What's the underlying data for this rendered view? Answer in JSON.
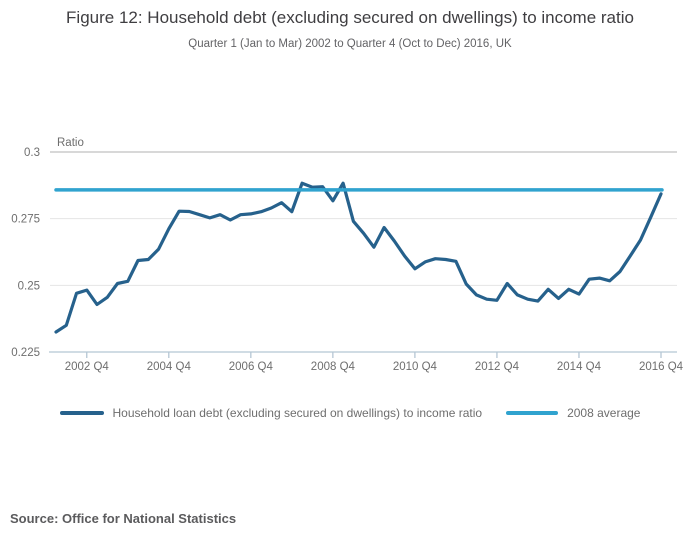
{
  "header": {
    "title": "Figure 12: Household debt (excluding secured on dwellings) to income ratio",
    "subtitle": "Quarter 1 (Jan to Mar) 2002 to Quarter 4 (Oct to Dec) 2016, UK"
  },
  "source": "Source: Office for National Statistics",
  "chart_data": {
    "type": "line",
    "title": "Figure 12: Household debt (excluding secured on dwellings) to income ratio",
    "subtitle": "Quarter 1 (Jan to Mar) 2002 to Quarter 4 (Oct to Dec) 2016, UK",
    "grid": "horizontal-only",
    "legend_position": "bottom",
    "y_axis": {
      "label": "Ratio",
      "min": 0.225,
      "max": 0.3,
      "tick_values": [
        0.3,
        0.275,
        0.25,
        0.225
      ],
      "tick_labels": [
        "0.3",
        "0.275",
        "0.25",
        "0.225"
      ]
    },
    "x_axis": {
      "start": "2002 Q1",
      "end": "2016 Q4",
      "points_per_year": 4,
      "tick_labels": [
        "2002 Q4",
        "2004 Q4",
        "2006 Q4",
        "2008 Q4",
        "2010 Q4",
        "2012 Q4",
        "2014 Q4",
        "2016 Q4"
      ],
      "tick_indices": [
        3,
        11,
        19,
        27,
        35,
        43,
        51,
        59
      ]
    },
    "series": [
      {
        "name": "Household loan debt (excluding secured on dwellings) to income ratio",
        "color": "#26618c",
        "values": [
          0.2325,
          0.235,
          0.247,
          0.2482,
          0.2428,
          0.2455,
          0.2507,
          0.2515,
          0.2593,
          0.2597,
          0.2635,
          0.2712,
          0.2778,
          0.2777,
          0.2765,
          0.2753,
          0.2765,
          0.2745,
          0.2765,
          0.2768,
          0.2776,
          0.279,
          0.281,
          0.2776,
          0.2883,
          0.2868,
          0.287,
          0.2817,
          0.2883,
          0.274,
          0.2695,
          0.2643,
          0.2717,
          0.2666,
          0.261,
          0.2562,
          0.2588,
          0.26,
          0.2597,
          0.259,
          0.2505,
          0.2464,
          0.2448,
          0.2444,
          0.2507,
          0.2464,
          0.2448,
          0.2441,
          0.2485,
          0.2451,
          0.2485,
          0.2467,
          0.2523,
          0.2527,
          0.2517,
          0.2552,
          0.261,
          0.267,
          0.2755,
          0.2843
        ]
      },
      {
        "name": "2008 average",
        "color": "#30a3cf",
        "constant_value": 0.2858
      }
    ],
    "style_colors": {
      "gridline_top": "#b0b0b0",
      "gridline": "#e4e4e4",
      "axis_line": "#b5c6d4",
      "axis_text": "#6e6e6e"
    }
  }
}
